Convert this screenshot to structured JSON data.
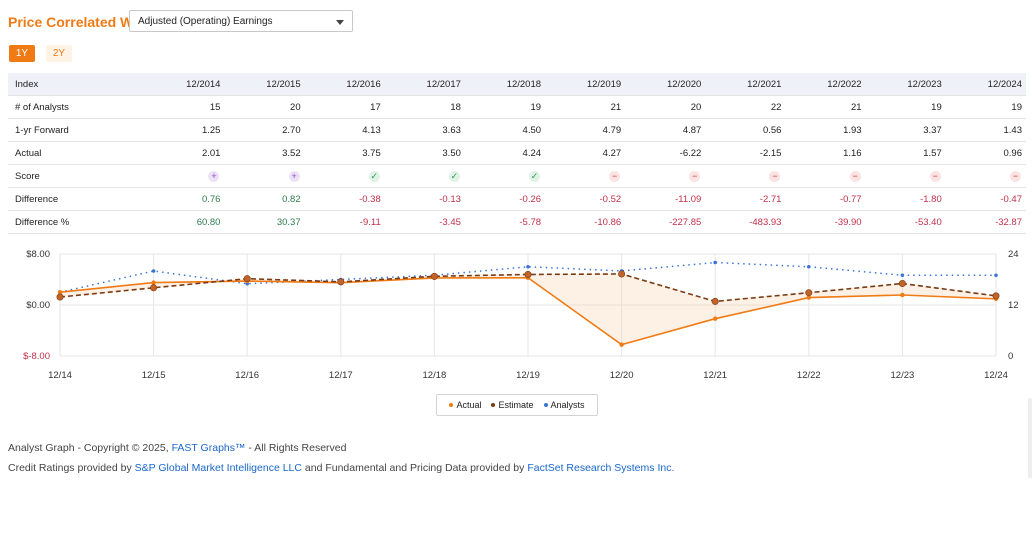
{
  "header": {
    "title": "Price Correlated With",
    "select_value": "Adjusted (Operating) Earnings",
    "ranges": [
      "1Y",
      "2Y"
    ]
  },
  "table": {
    "columns": [
      "Index",
      "12/2014",
      "12/2015",
      "12/2016",
      "12/2017",
      "12/2018",
      "12/2019",
      "12/2020",
      "12/2021",
      "12/2022",
      "12/2023",
      "12/2024"
    ],
    "rows": [
      {
        "label": "# of Analysts",
        "cells": [
          "15",
          "20",
          "17",
          "18",
          "19",
          "21",
          "20",
          "22",
          "21",
          "19",
          "19"
        ]
      },
      {
        "label": "1-yr Forward",
        "cells": [
          "1.25",
          "2.70",
          "4.13",
          "3.63",
          "4.50",
          "4.79",
          "4.87",
          "0.56",
          "1.93",
          "3.37",
          "1.43"
        ]
      },
      {
        "label": "Actual",
        "cells": [
          "2.01",
          "3.52",
          "3.75",
          "3.50",
          "4.24",
          "4.27",
          "-6.22",
          "-2.15",
          "1.16",
          "1.57",
          "0.96"
        ]
      },
      {
        "label": "Score",
        "scores": [
          "plus",
          "plus",
          "check",
          "check",
          "check",
          "minus",
          "minus",
          "minus",
          "minus",
          "minus",
          "minus"
        ]
      },
      {
        "label": "Difference",
        "cells": [
          "0.76",
          "0.82",
          "-0.38",
          "-0.13",
          "-0.26",
          "-0.52",
          "-11.09",
          "-2.71",
          "-0.77",
          "-1.80",
          "-0.47"
        ]
      },
      {
        "label": "Difference %",
        "cells": [
          "60.80",
          "30.37",
          "-9.11",
          "-3.45",
          "-5.78",
          "-10.86",
          "-227.85",
          "-483.93",
          "-39.90",
          "-53.40",
          "-32.87"
        ]
      }
    ]
  },
  "chart_data": {
    "type": "line",
    "x": [
      "12/14",
      "12/15",
      "12/16",
      "12/17",
      "12/18",
      "12/19",
      "12/20",
      "12/21",
      "12/22",
      "12/23",
      "12/24"
    ],
    "y_left_ticks": [
      "$8.00",
      "$0.00",
      "$-8.00"
    ],
    "y_left_range": [
      -8,
      8
    ],
    "y_right_ticks": [
      "24",
      "12",
      "0"
    ],
    "y_right_range": [
      0,
      24
    ],
    "series": [
      {
        "name": "Actual",
        "axis": "left",
        "color": "#f07a14",
        "style": "solid",
        "values": [
          2.01,
          3.52,
          3.75,
          3.5,
          4.24,
          4.27,
          -6.22,
          -2.15,
          1.16,
          1.57,
          0.96
        ]
      },
      {
        "name": "Estimate",
        "axis": "left",
        "color": "#7a3b12",
        "style": "dashed",
        "values": [
          1.25,
          2.7,
          4.13,
          3.63,
          4.5,
          4.79,
          4.87,
          0.56,
          1.93,
          3.37,
          1.43
        ]
      },
      {
        "name": "Analysts",
        "axis": "right",
        "color": "#3b74d6",
        "style": "dotted",
        "values": [
          15,
          20,
          17,
          18,
          19,
          21,
          20,
          22,
          21,
          19,
          19
        ]
      }
    ],
    "legend": [
      "Actual",
      "Estimate",
      "Analysts"
    ],
    "legend_position": "bottom-center",
    "grid": true
  },
  "footer": {
    "line1_prefix": "Analyst Graph - Copyright © 2025,",
    "line1_link": "FAST Graphs™",
    "line1_suffix": "- All Rights Reserved",
    "line2_prefix": "Credit Ratings provided by",
    "line2_link1": "S&P Global Market Intelligence LLC",
    "line2_middle": "and Fundamental and Pricing Data provided by",
    "line2_link2": "FactSet Research Systems Inc."
  },
  "colors": {
    "accent": "#f07a14",
    "positive": "#2e7d4f",
    "negative": "#c0304a",
    "link": "#1a66c9"
  }
}
